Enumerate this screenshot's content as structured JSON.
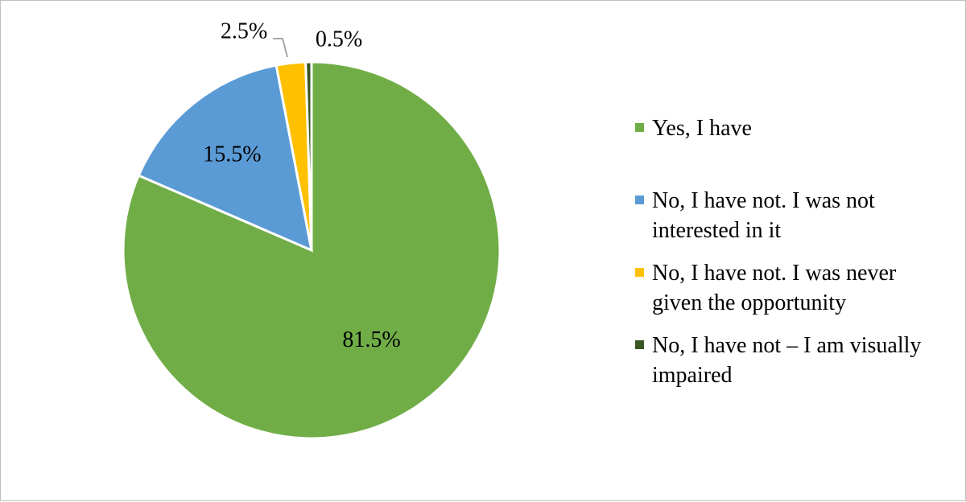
{
  "chart_data": {
    "type": "pie",
    "title": "",
    "categories": [
      "Yes, I have",
      "No, I have not. I was not interested in it",
      "No, I have not. I was never given the opportunity",
      "No, I have not – I am visually impaired"
    ],
    "values": [
      81.5,
      15.5,
      2.5,
      0.5
    ],
    "data_labels": [
      "81.5%",
      "15.5%",
      "2.5%",
      "0.5%"
    ],
    "colors": [
      "#70ad47",
      "#5b9bd5",
      "#ffc000",
      "#375623"
    ],
    "start_angle_deg": 0,
    "direction": "clockwise",
    "legend_position": "right"
  }
}
